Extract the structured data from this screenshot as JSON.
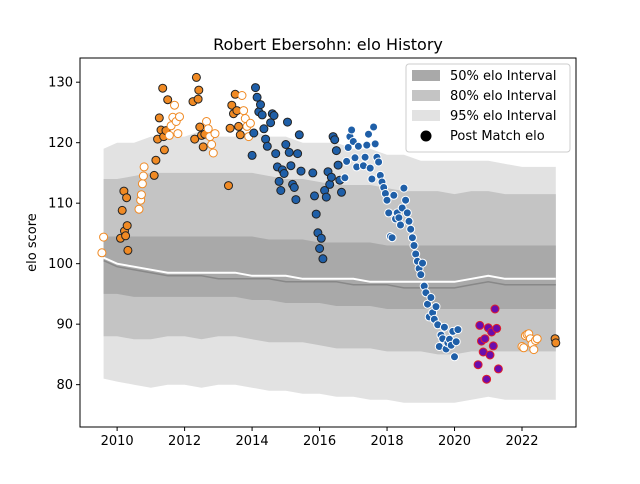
{
  "chart_data": {
    "type": "scatter",
    "title": "Robert Ebersohn: elo History",
    "xlabel": "",
    "ylabel": "elo score",
    "xlim": [
      2008.9,
      2023.6
    ],
    "ylim": [
      73,
      134
    ],
    "x_ticks": [
      2010,
      2012,
      2014,
      2016,
      2018,
      2020,
      2022
    ],
    "x_tick_labels": [
      "2010",
      "2012",
      "2014",
      "2016",
      "2018",
      "2020",
      "2022"
    ],
    "y_ticks": [
      80,
      90,
      100,
      110,
      120,
      130
    ],
    "y_tick_labels": [
      "80",
      "90",
      "100",
      "110",
      "120",
      "130"
    ],
    "grid": false,
    "legend_position": "top-right",
    "legend": [
      {
        "label": "50% elo Interval",
        "kind": "band",
        "color": "#a9a9a9"
      },
      {
        "label": "80% elo Interval",
        "kind": "band",
        "color": "#c4c4c4"
      },
      {
        "label": "95% elo Interval",
        "kind": "band",
        "color": "#e2e2e2"
      },
      {
        "label": "Post Match elo",
        "kind": "marker",
        "color": "#000000"
      }
    ],
    "colors": {
      "band_50": "#a9a9a9",
      "band_80": "#c4c4c4",
      "band_95": "#e2e2e2",
      "mean_line": "#888888",
      "median_line": "#ffffff",
      "orange": "#f08a24",
      "blue": "#1f5fa8",
      "purple": "#6a0dad",
      "red_edge": "#e0202a",
      "dark_edge": "#222222"
    },
    "bands": {
      "x": [
        2009.6,
        2010.0,
        2010.5,
        2011.0,
        2011.5,
        2012.0,
        2012.5,
        2013.0,
        2013.5,
        2014.0,
        2014.5,
        2015.0,
        2015.5,
        2016.0,
        2016.5,
        2017.0,
        2017.5,
        2018.0,
        2018.5,
        2019.0,
        2019.5,
        2020.0,
        2020.5,
        2021.0,
        2021.5,
        2022.0,
        2022.5,
        2023.0
      ],
      "p95_low": [
        81,
        80.5,
        80,
        79.5,
        80,
        80,
        79.5,
        80,
        80,
        79.5,
        79,
        79,
        78.5,
        78.5,
        78,
        78,
        77.5,
        77.5,
        77,
        77,
        77,
        77,
        77.5,
        78,
        77.5,
        77.5,
        77.5,
        77.5
      ],
      "p95_high": [
        119,
        120,
        120,
        121,
        121,
        121,
        122,
        121,
        121,
        122,
        121,
        121,
        120,
        120,
        120,
        119,
        119,
        118,
        118,
        117,
        117,
        117,
        117,
        117,
        116.5,
        116,
        116,
        116
      ],
      "p80_low": [
        88,
        88,
        87.5,
        87.5,
        88,
        88,
        87.5,
        88,
        88,
        87.5,
        87,
        87,
        87,
        86.5,
        86,
        86,
        86,
        85.5,
        85.5,
        85.5,
        85,
        85,
        85.5,
        85.5,
        85.5,
        85.5,
        85.5,
        85.5
      ],
      "p80_high": [
        114,
        114,
        114.5,
        115,
        115,
        115,
        115,
        115,
        115,
        115,
        114.5,
        114,
        114,
        113.5,
        113,
        113,
        113,
        112.5,
        112,
        112,
        112,
        111.5,
        112,
        112,
        111.5,
        111.5,
        111.5,
        111.5
      ],
      "p50_low": [
        95,
        95,
        94.5,
        94.5,
        94.5,
        94.5,
        94.5,
        94.5,
        94.5,
        94,
        94,
        93.5,
        93.5,
        93.5,
        93,
        93,
        93,
        92.5,
        92.5,
        92.5,
        92.5,
        92.5,
        92.5,
        92.5,
        92.5,
        92.5,
        92.5,
        92.5
      ],
      "p50_high": [
        104.5,
        104.5,
        104.5,
        104.5,
        104.5,
        104.5,
        104.5,
        104.5,
        104.5,
        104.5,
        104,
        104,
        104,
        103.5,
        103.5,
        103.5,
        103.5,
        103,
        103,
        103,
        103,
        103,
        103,
        103,
        103,
        103,
        103,
        103
      ],
      "mean": [
        100.5,
        99.5,
        99,
        98.5,
        98,
        98,
        98,
        97.5,
        97.5,
        97.5,
        97.5,
        97,
        97,
        97,
        97,
        96.5,
        96.5,
        96.5,
        96,
        96,
        96,
        96,
        96.5,
        97,
        96.5,
        96.5,
        96.5,
        96.5
      ],
      "median": [
        101,
        100,
        99.5,
        99,
        98.5,
        98.5,
        98.5,
        98.5,
        98.5,
        98,
        98,
        98,
        97.5,
        97.5,
        97.5,
        97.5,
        97,
        97,
        97,
        97,
        97,
        97,
        97.5,
        98,
        97.5,
        97.5,
        97.5,
        97.5
      ]
    },
    "series": [
      {
        "group": "orange-open-2009",
        "x": [
          2009.55,
          2009.6,
          2010.65,
          2010.7,
          2010.72,
          2010.75,
          2010.78,
          2010.8
        ],
        "y": [
          101.8,
          104.4,
          109,
          110.5,
          111.4,
          113.2,
          114.5,
          116
        ]
      },
      {
        "group": "orange-filled-2010",
        "x": [
          2010.1,
          2010.15,
          2010.2,
          2010.22,
          2010.25,
          2010.28,
          2010.3,
          2010.32
        ],
        "y": [
          104.2,
          108.8,
          112,
          105.4,
          104.6,
          110.9,
          106.3,
          102.2
        ]
      },
      {
        "group": "orange-filled-2011",
        "x": [
          2011.1,
          2011.15,
          2011.2,
          2011.25,
          2011.3,
          2011.35,
          2011.38,
          2011.4,
          2011.45,
          2011.5
        ],
        "y": [
          114.6,
          117.1,
          120.6,
          124.1,
          122.1,
          129,
          121,
          118.8,
          122,
          127.1
        ]
      },
      {
        "group": "orange-open-2011",
        "x": [
          2011.55,
          2011.6,
          2011.65,
          2011.7,
          2011.75,
          2011.8,
          2011.85
        ],
        "y": [
          121.2,
          122.8,
          124.2,
          126.2,
          123.5,
          121.5,
          124.3
        ]
      },
      {
        "group": "orange-filled-2012",
        "x": [
          2012.25,
          2012.3,
          2012.35,
          2012.4,
          2012.42,
          2012.45,
          2012.5,
          2012.55,
          2012.6
        ],
        "y": [
          126.8,
          120.6,
          130.8,
          127.2,
          128.7,
          122.6,
          121.2,
          119.3,
          121.4
        ]
      },
      {
        "group": "orange-open-2012",
        "x": [
          2012.65,
          2012.7,
          2012.75,
          2012.8,
          2012.85,
          2012.9
        ],
        "y": [
          123.5,
          122.3,
          121,
          119.7,
          118.3,
          121.5
        ]
      },
      {
        "group": "orange-filled-2013",
        "x": [
          2013.3,
          2013.35,
          2013.4,
          2013.45,
          2013.5,
          2013.55,
          2013.6,
          2013.65
        ],
        "y": [
          112.9,
          122.4,
          126.2,
          124.8,
          128,
          125.3,
          122.7,
          121.3
        ]
      },
      {
        "group": "orange-open-2013",
        "x": [
          2013.7,
          2013.75,
          2013.8,
          2013.85,
          2013.9,
          2013.95
        ],
        "y": [
          127.8,
          125.3,
          124,
          122.7,
          121,
          123.2
        ]
      },
      {
        "group": "blue-2014",
        "x": [
          2014.0,
          2014.05,
          2014.1,
          2014.15,
          2014.2,
          2014.25,
          2014.3,
          2014.35,
          2014.4,
          2014.45
        ],
        "y": [
          117.9,
          121.6,
          129.1,
          127.5,
          125.1,
          126.3,
          124.6,
          122.3,
          120.6,
          119.4
        ],
        "edge": "dark"
      },
      {
        "group": "blue-2014b",
        "x": [
          2014.55,
          2014.6,
          2014.65,
          2014.7,
          2014.75,
          2014.8,
          2014.85,
          2014.9,
          2014.95,
          2015.0,
          2015.05
        ],
        "y": [
          123.3,
          124.8,
          124.5,
          118.2,
          116,
          113.6,
          112.1,
          115.5,
          114.9,
          119.7,
          123.4
        ],
        "edge": "dark"
      },
      {
        "group": "blue-2015",
        "x": [
          2015.1,
          2015.15,
          2015.2,
          2015.25,
          2015.3,
          2015.35,
          2015.4,
          2015.45
        ],
        "y": [
          118.4,
          116.2,
          113.1,
          112.6,
          110.6,
          118.2,
          121.3,
          115.3
        ],
        "edge": "dark"
      },
      {
        "group": "blue-2015b",
        "x": [
          2015.8,
          2015.85,
          2015.9,
          2015.95,
          2016.0,
          2016.05,
          2016.1,
          2016.15,
          2016.2
        ],
        "y": [
          115,
          111.2,
          108.2,
          105.1,
          102.5,
          104.2,
          100.8,
          112.1,
          111
        ],
        "edge": "dark"
      },
      {
        "group": "blue-2016",
        "x": [
          2016.25,
          2016.3,
          2016.35,
          2016.4,
          2016.45,
          2016.5,
          2016.55,
          2016.6,
          2016.65
        ],
        "y": [
          115.2,
          113.1,
          114.3,
          121,
          120.5,
          118.7,
          116.3,
          113.8,
          111.8
        ],
        "edge": "dark"
      },
      {
        "group": "blue-2016b",
        "x": [
          2016.75,
          2016.8,
          2016.85,
          2016.9,
          2016.95,
          2017.0,
          2017.05,
          2017.1,
          2017.15
        ],
        "y": [
          114.2,
          116.9,
          119.2,
          121,
          122.1,
          120.2,
          117.5,
          116,
          119.4
        ],
        "edge": "white"
      },
      {
        "group": "blue-2017",
        "x": [
          2017.3,
          2017.35,
          2017.4,
          2017.45,
          2017.5,
          2017.55,
          2017.6,
          2017.65,
          2017.7,
          2017.75
        ],
        "y": [
          116.2,
          117.6,
          119.6,
          121.4,
          115.8,
          114,
          122.6,
          119.8,
          117.6,
          116.8
        ],
        "edge": "white"
      },
      {
        "group": "blue-2017b",
        "x": [
          2017.8,
          2017.85,
          2017.9,
          2017.95,
          2018.0,
          2018.05,
          2018.1,
          2018.15,
          2018.2,
          2018.25
        ],
        "y": [
          114.6,
          113.5,
          112.6,
          111.6,
          110.5,
          108.4,
          104.5,
          104.3,
          111.3,
          107.4
        ],
        "edge": "white"
      },
      {
        "group": "blue-2018",
        "x": [
          2018.3,
          2018.35,
          2018.4,
          2018.45,
          2018.5,
          2018.55,
          2018.6,
          2018.65,
          2018.7,
          2018.75,
          2018.8,
          2018.85,
          2018.9,
          2018.95,
          2019.0
        ],
        "y": [
          108.4,
          107.6,
          106.4,
          109.2,
          112.5,
          110.5,
          108.4,
          107,
          105.7,
          104.3,
          103,
          101.6,
          100.4,
          99.2,
          98.2
        ],
        "edge": "white"
      },
      {
        "group": "blue-2019",
        "x": [
          2019.05,
          2019.1,
          2019.15,
          2019.2,
          2019.25,
          2019.3,
          2019.35,
          2019.4,
          2019.45,
          2019.5,
          2019.55,
          2019.6,
          2019.65
        ],
        "y": [
          100.1,
          96.3,
          95.2,
          93.3,
          91.2,
          94.4,
          91.9,
          90.8,
          92.9,
          89.9,
          86.3,
          88.2,
          87.6
        ],
        "edge": "white"
      },
      {
        "group": "blue-2019b",
        "x": [
          2019.7,
          2019.75,
          2019.8,
          2019.85,
          2019.9,
          2019.95,
          2020.0,
          2020.05,
          2020.1
        ],
        "y": [
          89.5,
          85.9,
          86.9,
          87.5,
          86.5,
          88.8,
          84.6,
          87.1,
          89.1
        ],
        "edge": "white"
      },
      {
        "group": "purple-2020",
        "x": [
          2020.7,
          2020.75,
          2020.8,
          2020.85,
          2020.9,
          2020.95,
          2021.0,
          2021.05,
          2021.1,
          2021.15,
          2021.2,
          2021.25,
          2021.3
        ],
        "y": [
          83.3,
          89.8,
          87.2,
          85.4,
          87.6,
          80.9,
          89.4,
          84.9,
          88.7,
          86.4,
          92.5,
          89.3,
          82.6
        ]
      },
      {
        "group": "orange-open-2022",
        "x": [
          2022.0,
          2022.05,
          2022.1,
          2022.15,
          2022.2,
          2022.25,
          2022.3,
          2022.35,
          2022.4,
          2022.45
        ],
        "y": [
          86.3,
          86.1,
          88.1,
          88.3,
          88.4,
          87.6,
          86.7,
          85.8,
          87.3,
          87.6
        ]
      },
      {
        "group": "orange-filled-2023",
        "x": [
          2022.98,
          2023.0
        ],
        "y": [
          87.6,
          86.9
        ]
      }
    ]
  }
}
